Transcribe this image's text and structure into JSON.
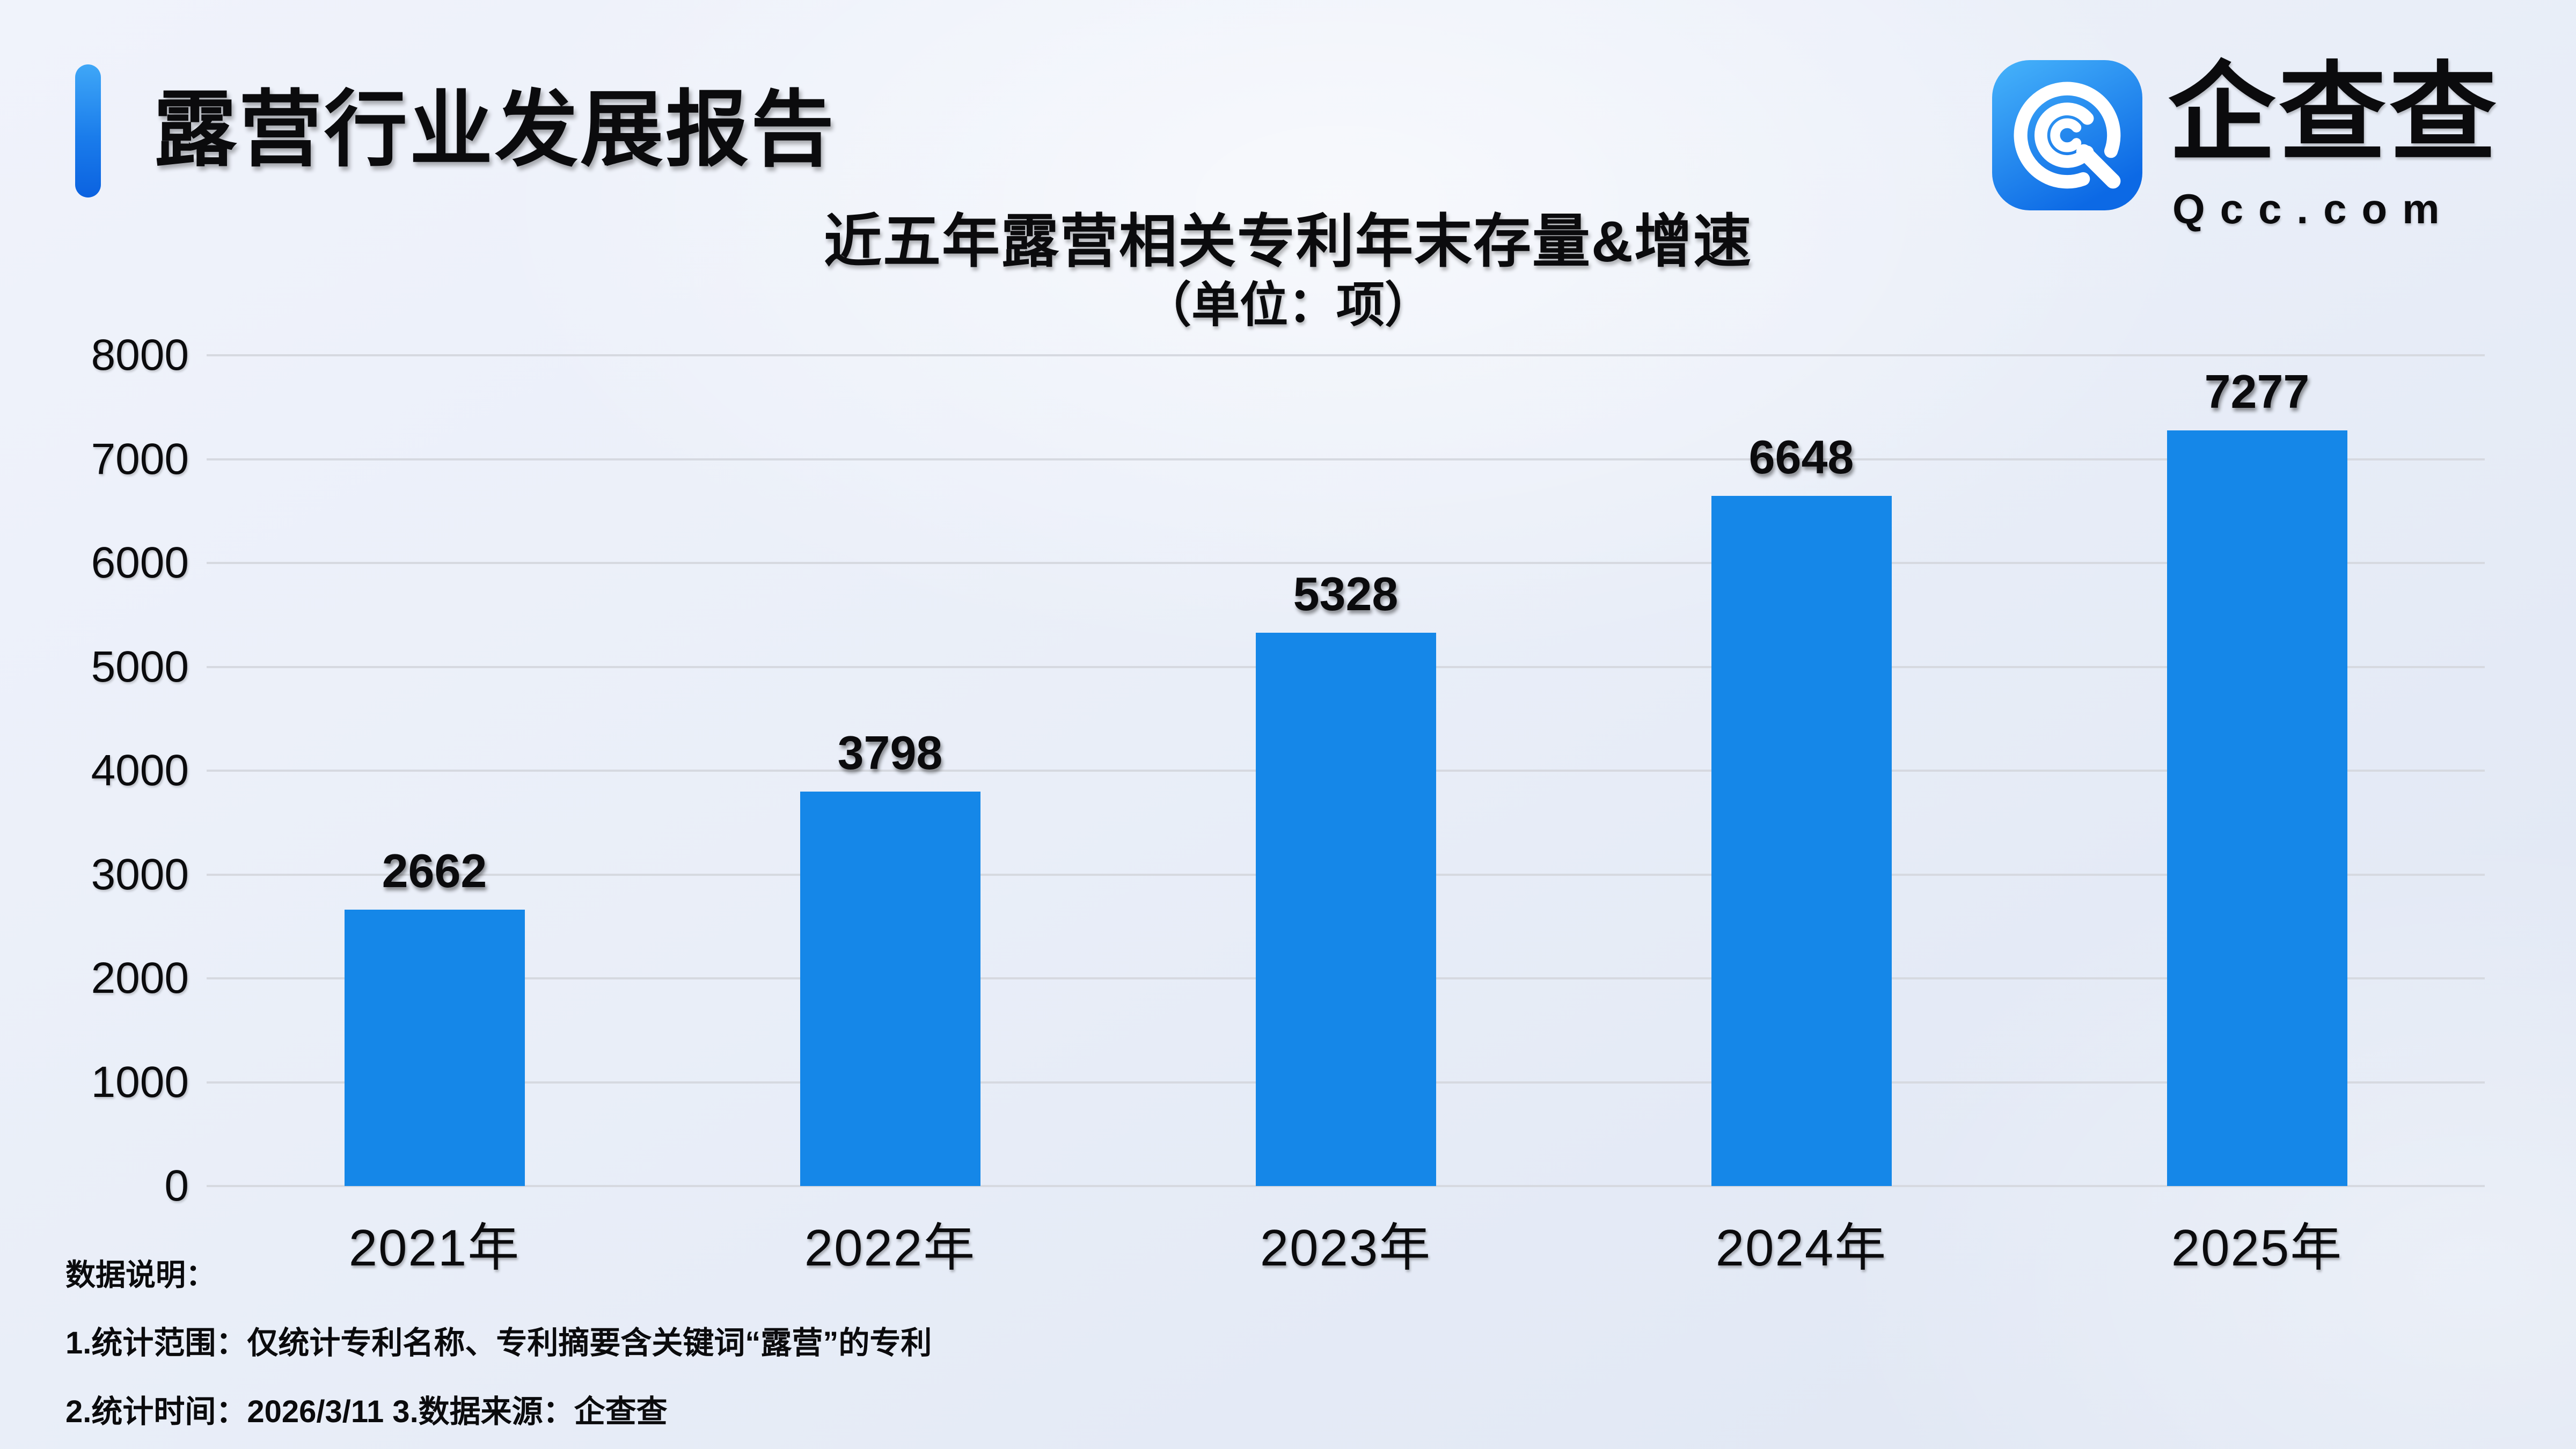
{
  "header": {
    "title": "露营行业发展报告"
  },
  "logo": {
    "name": "企查查",
    "domain": "Qcc.com",
    "icon": "qcc-q-spiral-icon"
  },
  "chart": {
    "title": "近五年露营相关专利年末存量&增速",
    "unit_label": "（单位：项）"
  },
  "chart_data": {
    "type": "bar",
    "title": "近五年露营相关专利年末存量&增速",
    "unit_label": "（单位：项）",
    "categories": [
      "2021年",
      "2022年",
      "2023年",
      "2024年",
      "2025年"
    ],
    "values": [
      2662,
      3798,
      5328,
      6648,
      7277
    ],
    "xlabel": "",
    "ylabel": "",
    "ylim": [
      0,
      8000
    ],
    "yticks": [
      0,
      1000,
      2000,
      3000,
      4000,
      5000,
      6000,
      7000,
      8000
    ],
    "grid": true,
    "legend": "none",
    "bar_color": "#1587e8",
    "grid_color": "#d6d9e0"
  },
  "notes": {
    "heading": "数据说明：",
    "line1": "1.统计范围：仅统计专利名称、专利摘要含关键词“露营”的专利",
    "line2": "2.统计时间：2026/3/11  3.数据来源：企查查"
  },
  "colors": {
    "brand_blue": "#1587e8",
    "accent_gradient_top": "#3fa7f7",
    "accent_gradient_bottom": "#0b62e0",
    "text": "#0b0b0d",
    "background_light": "#eff3fb",
    "background_dark": "#dfe6f3"
  }
}
